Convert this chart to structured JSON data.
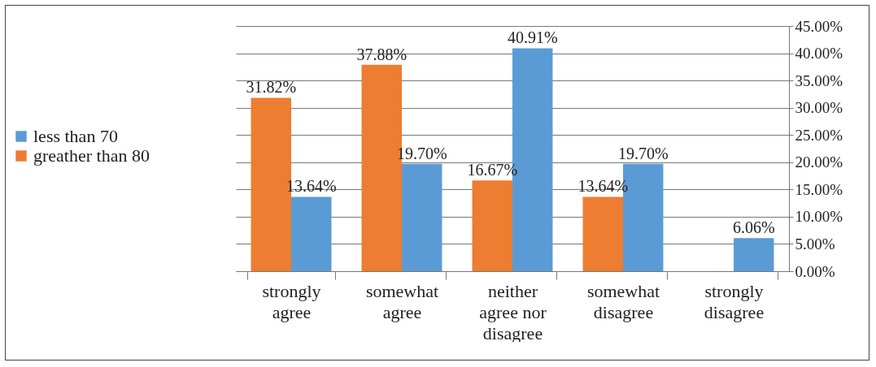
{
  "chart_data": {
    "type": "bar",
    "categories": [
      "strongly agree",
      "somewhat agree",
      "neither agree nor disagree",
      "somewhat disagree",
      "strongly disagree"
    ],
    "series": [
      {
        "name": "less than 70",
        "color": "#5b9bd5",
        "values": [
          13.64,
          19.7,
          40.91,
          19.7,
          6.06
        ],
        "value_labels": [
          "13.64%",
          "19.70%",
          "40.91%",
          "19.70%",
          "6.06%"
        ]
      },
      {
        "name": "greather than 80",
        "color": "#ed7d31",
        "values": [
          31.82,
          37.88,
          16.67,
          13.64,
          null
        ],
        "value_labels": [
          "31.82%",
          "37.88%",
          "16.67%",
          "13.64%",
          null
        ]
      }
    ],
    "ylim": [
      0,
      45
    ],
    "yticks": [
      {
        "value": 0,
        "label": "0.00%"
      },
      {
        "value": 5,
        "label": "5.00%"
      },
      {
        "value": 10,
        "label": "10.00%"
      },
      {
        "value": 15,
        "label": "15.00%"
      },
      {
        "value": 20,
        "label": "20.00%"
      },
      {
        "value": 25,
        "label": "25.00%"
      },
      {
        "value": 30,
        "label": "30.00%"
      },
      {
        "value": 35,
        "label": "35.00%"
      },
      {
        "value": 40,
        "label": "40.00%"
      },
      {
        "value": 45,
        "label": "45.00%"
      }
    ],
    "grid": "y",
    "legend": "left"
  }
}
